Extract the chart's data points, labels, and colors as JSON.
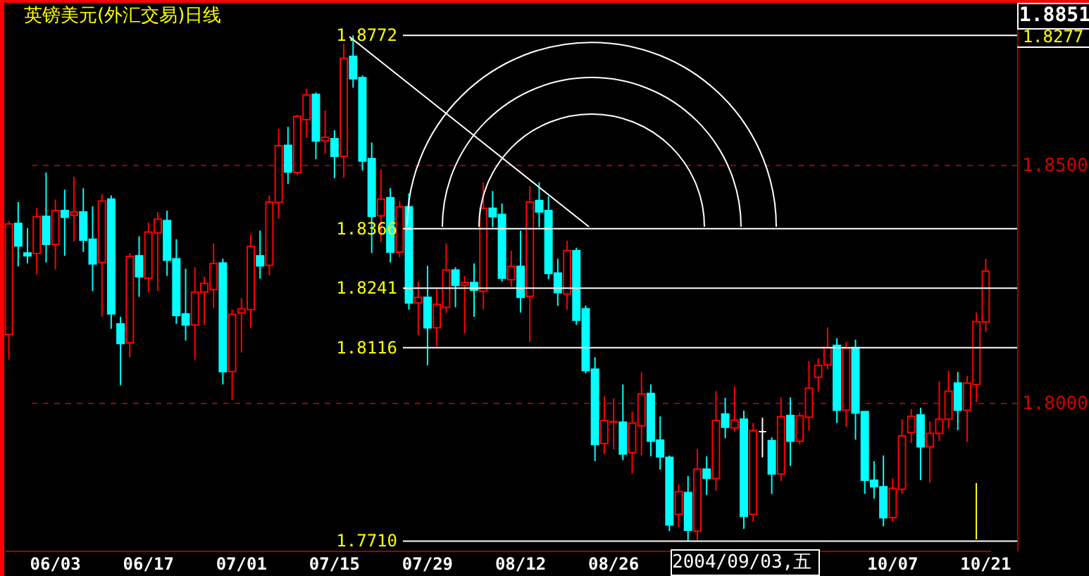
{
  "chart_data": {
    "type": "candlestick",
    "title": "英镑美元(外汇交易)日线",
    "annotations": [
      "1.8851",
      "1.8277",
      "2004/09/03,五"
    ],
    "categories": [
      null,
      null,
      null,
      null,
      null,
      "06/03",
      null,
      null,
      null,
      null,
      null,
      null,
      null,
      null,
      null,
      "06/17",
      null,
      null,
      null,
      null,
      null,
      null,
      null,
      null,
      null,
      "07/01",
      null,
      null,
      null,
      null,
      null,
      null,
      null,
      null,
      null,
      "07/15",
      null,
      null,
      null,
      null,
      null,
      null,
      null,
      null,
      null,
      "07/29",
      null,
      null,
      null,
      null,
      null,
      null,
      null,
      null,
      null,
      "08/12",
      null,
      null,
      null,
      null,
      null,
      null,
      null,
      null,
      null,
      "08/26",
      null,
      null,
      null,
      null,
      null,
      null,
      null,
      null,
      null,
      null,
      null,
      null,
      null,
      null,
      null,
      null,
      null,
      null,
      null,
      null,
      null,
      null,
      null,
      null,
      null,
      null,
      null,
      null,
      null,
      "10/07",
      null,
      null,
      null,
      null,
      null,
      null,
      null,
      null,
      null,
      "10/21"
    ],
    "ohlc": [
      [
        1.8144,
        1.8382,
        1.8091,
        1.8376
      ],
      [
        1.8377,
        1.8422,
        1.8287,
        1.833
      ],
      [
        1.8315,
        1.8367,
        1.8293,
        1.8309
      ],
      [
        1.8314,
        1.841,
        1.827,
        1.8391
      ],
      [
        1.8392,
        1.8484,
        1.8295,
        1.8333
      ],
      [
        1.8333,
        1.8427,
        1.828,
        1.8404
      ],
      [
        1.8404,
        1.8448,
        1.8309,
        1.839
      ],
      [
        1.8394,
        1.8475,
        1.8339,
        1.8401
      ],
      [
        1.8401,
        1.8451,
        1.8317,
        1.8342
      ],
      [
        1.8344,
        1.8413,
        1.8235,
        1.8292
      ],
      [
        1.8295,
        1.8439,
        1.8181,
        1.8424
      ],
      [
        1.8428,
        1.8436,
        1.8156,
        1.8187
      ],
      [
        1.8166,
        1.8181,
        1.8037,
        1.8125
      ],
      [
        1.8126,
        1.8315,
        1.8096,
        1.8308
      ],
      [
        1.8309,
        1.835,
        1.8223,
        1.8265
      ],
      [
        1.8262,
        1.8379,
        1.8232,
        1.8359
      ],
      [
        1.8357,
        1.8401,
        1.8235,
        1.8386
      ],
      [
        1.8383,
        1.8404,
        1.8267,
        1.83
      ],
      [
        1.8303,
        1.8344,
        1.8166,
        1.8184
      ],
      [
        1.8187,
        1.8282,
        1.8131,
        1.8164
      ],
      [
        1.8164,
        1.8285,
        1.8091,
        1.8233
      ],
      [
        1.8233,
        1.8265,
        1.8164,
        1.8251
      ],
      [
        1.8238,
        1.8335,
        1.8199,
        1.8293
      ],
      [
        1.8294,
        1.8303,
        1.8039,
        1.8066
      ],
      [
        1.8066,
        1.8196,
        1.8007,
        1.8186
      ],
      [
        1.8189,
        1.822,
        1.8106,
        1.8198
      ],
      [
        1.8196,
        1.8354,
        1.8158,
        1.8329
      ],
      [
        1.8309,
        1.8362,
        1.8261,
        1.8288
      ],
      [
        1.8289,
        1.8436,
        1.8268,
        1.8422
      ],
      [
        1.8421,
        1.8576,
        1.8387,
        1.854
      ],
      [
        1.8541,
        1.858,
        1.846,
        1.8485
      ],
      [
        1.8484,
        1.8605,
        1.8478,
        1.8602
      ],
      [
        1.8595,
        1.866,
        1.8558,
        1.8647
      ],
      [
        1.8648,
        1.8652,
        1.8512,
        1.855
      ],
      [
        1.855,
        1.8615,
        1.8523,
        1.8558
      ],
      [
        1.8555,
        1.8573,
        1.8472,
        1.8518
      ],
      [
        1.8518,
        1.8754,
        1.8473,
        1.8724
      ],
      [
        1.8728,
        1.8772,
        1.8662,
        1.8681
      ],
      [
        1.8683,
        1.8688,
        1.8488,
        1.8508
      ],
      [
        1.8513,
        1.8547,
        1.8315,
        1.8392
      ],
      [
        1.8393,
        1.849,
        1.8338,
        1.8428
      ],
      [
        1.8431,
        1.8451,
        1.8295,
        1.8317
      ],
      [
        1.8317,
        1.8424,
        1.8306,
        1.8412
      ],
      [
        1.8412,
        1.844,
        1.8196,
        1.821
      ],
      [
        1.821,
        1.8255,
        1.8143,
        1.8222
      ],
      [
        1.8222,
        1.8288,
        1.8079,
        1.8158
      ],
      [
        1.8158,
        1.824,
        1.8119,
        1.8207
      ],
      [
        1.8201,
        1.8335,
        1.8189,
        1.8279
      ],
      [
        1.8279,
        1.8285,
        1.8201,
        1.8247
      ],
      [
        1.8247,
        1.8267,
        1.8146,
        1.8253
      ],
      [
        1.8253,
        1.8293,
        1.8181,
        1.8237
      ],
      [
        1.8235,
        1.8463,
        1.8196,
        1.8409
      ],
      [
        1.8409,
        1.8445,
        1.8369,
        1.8391
      ],
      [
        1.8396,
        1.8419,
        1.8255,
        1.8262
      ],
      [
        1.8259,
        1.832,
        1.8244,
        1.8287
      ],
      [
        1.8287,
        1.8362,
        1.819,
        1.8222
      ],
      [
        1.8224,
        1.8455,
        1.8128,
        1.8422
      ],
      [
        1.8425,
        1.8463,
        1.8369,
        1.8401
      ],
      [
        1.8404,
        1.8434,
        1.826,
        1.8272
      ],
      [
        1.8273,
        1.8303,
        1.8204,
        1.8232
      ],
      [
        1.8229,
        1.8341,
        1.8196,
        1.832
      ],
      [
        1.832,
        1.8326,
        1.8164,
        1.8174
      ],
      [
        1.8198,
        1.8205,
        1.8062,
        1.8068
      ],
      [
        1.8071,
        1.8096,
        1.7878,
        1.7913
      ],
      [
        1.7915,
        1.8014,
        1.7893,
        1.7963
      ],
      [
        1.796,
        1.801,
        1.7903,
        1.7961
      ],
      [
        1.796,
        1.8039,
        1.788,
        1.7893
      ],
      [
        1.7896,
        1.7982,
        1.7851,
        1.7958
      ],
      [
        1.7952,
        1.8065,
        1.789,
        1.8019
      ],
      [
        1.802,
        1.8039,
        1.7888,
        1.792
      ],
      [
        1.7922,
        1.7972,
        1.786,
        1.7887
      ],
      [
        1.7886,
        1.789,
        1.7731,
        1.7744
      ],
      [
        1.7766,
        1.7829,
        1.7739,
        1.7814
      ],
      [
        1.7812,
        1.7847,
        1.771,
        1.7733
      ],
      [
        1.7731,
        1.7903,
        1.7711,
        1.7861
      ],
      [
        1.7861,
        1.7888,
        1.7807,
        1.7842
      ],
      [
        1.7841,
        1.8025,
        1.7816,
        1.7963
      ],
      [
        1.7977,
        1.8011,
        1.7926,
        1.7949
      ],
      [
        1.7948,
        1.8035,
        1.794,
        1.7964
      ],
      [
        1.7966,
        1.7984,
        1.7736,
        1.7762
      ],
      [
        1.7766,
        1.7958,
        1.7751,
        1.7942
      ],
      [
        1.794,
        1.7969,
        1.7886,
        1.794
      ],
      [
        1.7921,
        1.7928,
        1.7809,
        1.7851
      ],
      [
        1.7851,
        1.8012,
        1.7836,
        1.7971
      ],
      [
        1.7974,
        1.8012,
        1.7868,
        1.792
      ],
      [
        1.792,
        1.798,
        1.7913,
        1.7973
      ],
      [
        1.797,
        1.8088,
        1.7942,
        1.8031
      ],
      [
        1.8054,
        1.8094,
        1.8024,
        1.8079
      ],
      [
        1.808,
        1.8159,
        1.8071,
        1.8116
      ],
      [
        1.8121,
        1.8136,
        1.7958,
        1.7985
      ],
      [
        1.7985,
        1.8128,
        1.795,
        1.8115
      ],
      [
        1.8116,
        1.8133,
        1.7923,
        1.7979
      ],
      [
        1.7982,
        1.7982,
        1.7809,
        1.7838
      ],
      [
        1.7838,
        1.7878,
        1.7799,
        1.7824
      ],
      [
        1.7824,
        1.789,
        1.7741,
        1.7759
      ],
      [
        1.7759,
        1.7842,
        1.7751,
        1.7821
      ],
      [
        1.7819,
        1.7966,
        1.7809,
        1.7931
      ],
      [
        1.7938,
        1.7987,
        1.7916,
        1.7972
      ],
      [
        1.7975,
        1.799,
        1.7838,
        1.7908
      ],
      [
        1.7908,
        1.7961,
        1.7833,
        1.7936
      ],
      [
        1.7936,
        1.8045,
        1.792,
        1.7966
      ],
      [
        1.7966,
        1.8068,
        1.7946,
        1.8025
      ],
      [
        1.8042,
        1.8065,
        1.7943,
        1.7985
      ],
      [
        1.7985,
        1.8057,
        1.7918,
        1.8042
      ],
      [
        1.8039,
        1.819,
        1.8002,
        1.8171
      ],
      [
        1.817,
        1.8303,
        1.8149,
        1.8277
      ]
    ],
    "colors": [
      "#ff0000",
      "#00ffff",
      "#00ffff",
      "#ff0000",
      "#00ffff",
      "#ff0000",
      "#00ffff",
      "#ff0000",
      "#00ffff",
      "#00ffff",
      "#ff0000",
      "#00ffff",
      "#00ffff",
      "#ff0000",
      "#00ffff",
      "#ff0000",
      "#ff0000",
      "#00ffff",
      "#00ffff",
      "#00ffff",
      "#ff0000",
      "#ff0000",
      "#ff0000",
      "#00ffff",
      "#ff0000",
      "#ff0000",
      "#ff0000",
      "#00ffff",
      "#ff0000",
      "#ff0000",
      "#00ffff",
      "#ff0000",
      "#ff0000",
      "#00ffff",
      "#ff0000",
      "#00ffff",
      "#ff0000",
      "#00ffff",
      "#00ffff",
      "#00ffff",
      "#ff0000",
      "#00ffff",
      "#ff0000",
      "#00ffff",
      "#ff0000",
      "#00ffff",
      "#ff0000",
      "#ff0000",
      "#00ffff",
      "#ff0000",
      "#00ffff",
      "#ff0000",
      "#00ffff",
      "#00ffff",
      "#ff0000",
      "#00ffff",
      "#ff0000",
      "#00ffff",
      "#00ffff",
      "#00ffff",
      "#ff0000",
      "#00ffff",
      "#00ffff",
      "#00ffff",
      "#ff0000",
      "#ff0000",
      "#00ffff",
      "#ff0000",
      "#ff0000",
      "#00ffff",
      "#00ffff",
      "#00ffff",
      "#ff0000",
      "#00ffff",
      "#ff0000",
      "#00ffff",
      "#ff0000",
      "#00ffff",
      "#ff0000",
      "#00ffff",
      "#ff0000",
      "#ffffff",
      "#00ffff",
      "#ff0000",
      "#00ffff",
      "#ff0000",
      "#ff0000",
      "#ff0000",
      "#ff0000",
      "#00ffff",
      "#ff0000",
      "#00ffff",
      "#00ffff",
      "#00ffff",
      "#00ffff",
      "#ff0000",
      "#ff0000",
      "#ff0000",
      "#00ffff",
      "#ff0000",
      "#ff0000",
      "#ff0000",
      "#00ffff",
      "#ff0000",
      "#ff0000",
      "#ff0000"
    ],
    "ylim": [
      1.769,
      1.879
    ],
    "yticks": [
      {
        "value": 1.85,
        "label": "1.8500"
      },
      {
        "value": 1.8,
        "label": "1.8000"
      }
    ],
    "grid": "y",
    "ref_lines": [
      {
        "axis": "y",
        "value": 1.8772,
        "label": "1.8772",
        "color": "#ffffff"
      },
      {
        "axis": "y",
        "value": 1.8366,
        "label": "1.8366",
        "color": "#ffffff"
      },
      {
        "axis": "y",
        "value": 1.8241,
        "label": "1.8241",
        "color": "#ffffff"
      },
      {
        "axis": "y",
        "value": 1.8116,
        "label": "1.8116",
        "color": "#ffffff"
      },
      {
        "axis": "y",
        "value": 1.771,
        "label": "1.7710",
        "color": "#ffffff"
      }
    ]
  }
}
